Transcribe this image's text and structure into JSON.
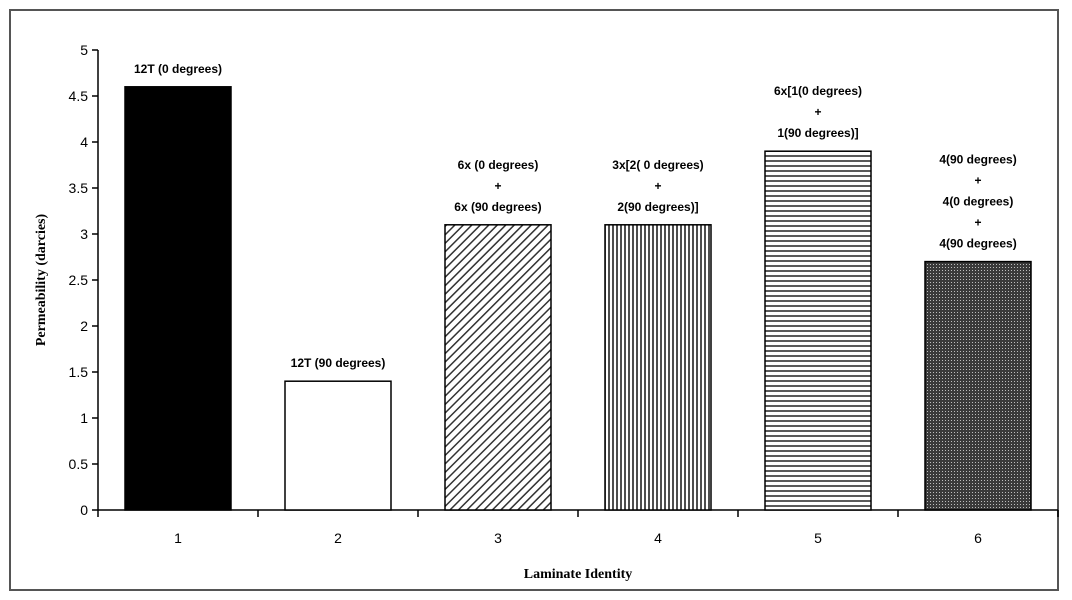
{
  "chart_data": {
    "type": "bar",
    "xlabel": "Laminate Identity",
    "ylabel": "Permeability (darcies)",
    "ylim": [
      0,
      5
    ],
    "yticks": [
      0,
      0.5,
      1,
      1.5,
      2,
      2.5,
      3,
      3.5,
      4,
      4.5,
      5
    ],
    "yticks_text": [
      "0",
      "0.5",
      "1",
      "1.5",
      "2",
      "2.5",
      "3",
      "3.5",
      "4",
      "4.5",
      "5"
    ],
    "categories": [
      "1",
      "2",
      "3",
      "4",
      "5",
      "6"
    ],
    "values": [
      4.6,
      1.4,
      3.1,
      3.1,
      3.9,
      2.7
    ],
    "bar_labels": [
      [
        "12T (0 degrees)"
      ],
      [
        "12T (90 degrees)"
      ],
      [
        "6x (0 degrees)",
        "+",
        "6x (90 degrees)"
      ],
      [
        "3x[2( 0 degrees)",
        "+",
        "2(90 degrees)]"
      ],
      [
        "6x[1(0 degrees)",
        "+",
        "1(90 degrees)]"
      ],
      [
        "4(90 degrees)",
        "+",
        "4(0 degrees)",
        "+",
        "4(90 degrees)"
      ]
    ],
    "bar_fills": [
      "solid-black",
      "white",
      "diagonal-hatch",
      "vertical-hatch",
      "horizontal-hatch",
      "dense-crosshatch"
    ],
    "grid": false,
    "legend": "none"
  }
}
